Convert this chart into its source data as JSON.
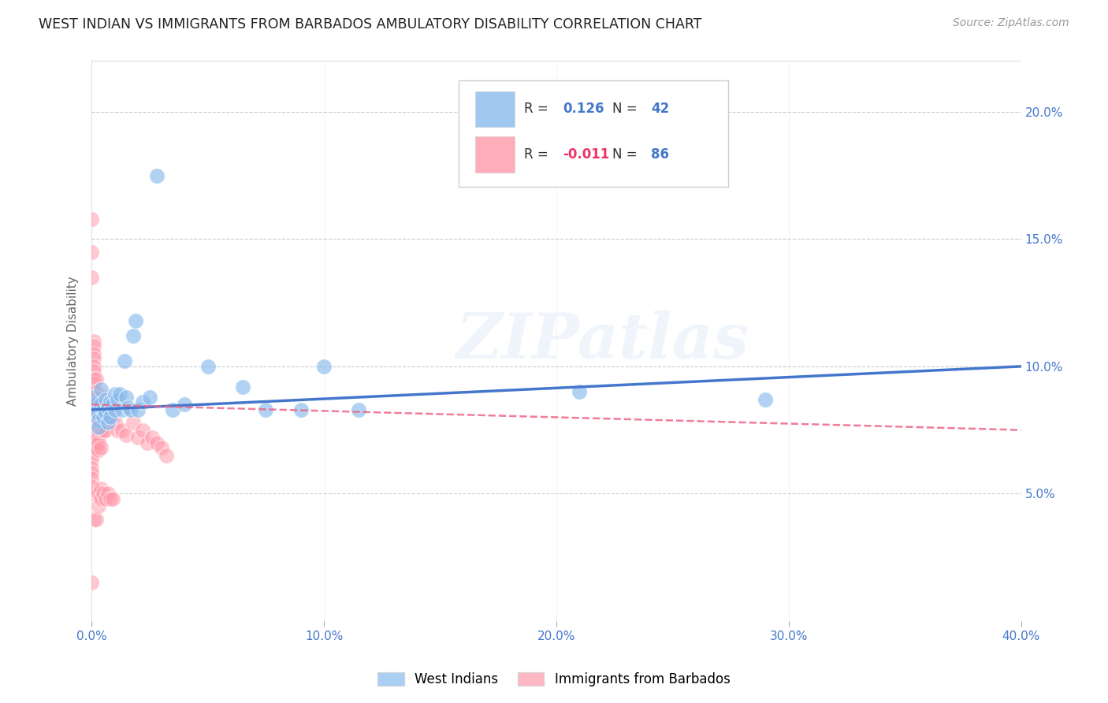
{
  "title": "WEST INDIAN VS IMMIGRANTS FROM BARBADOS AMBULATORY DISABILITY CORRELATION CHART",
  "source": "Source: ZipAtlas.com",
  "ylabel": "Ambulatory Disability",
  "legend1_label": "West Indians",
  "legend2_label": "Immigrants from Barbados",
  "R1": 0.126,
  "N1": 42,
  "R2": -0.011,
  "N2": 86,
  "blue_color": "#88BBEE",
  "pink_color": "#FF99AA",
  "blue_line_color": "#4477CC",
  "pink_line_color": "#EE6688",
  "watermark": "ZIPatlas",
  "blue_scatter_x": [
    0.0,
    0.001,
    0.001,
    0.002,
    0.003,
    0.003,
    0.004,
    0.004,
    0.005,
    0.005,
    0.006,
    0.006,
    0.007,
    0.007,
    0.008,
    0.008,
    0.009,
    0.01,
    0.01,
    0.011,
    0.012,
    0.013,
    0.014,
    0.015,
    0.016,
    0.017,
    0.018,
    0.019,
    0.02,
    0.022,
    0.025,
    0.028,
    0.035,
    0.04,
    0.05,
    0.065,
    0.075,
    0.09,
    0.1,
    0.115,
    0.21,
    0.29
  ],
  "blue_scatter_y": [
    0.083,
    0.085,
    0.088,
    0.082,
    0.079,
    0.076,
    0.091,
    0.085,
    0.083,
    0.08,
    0.087,
    0.082,
    0.084,
    0.078,
    0.086,
    0.08,
    0.085,
    0.089,
    0.083,
    0.087,
    0.089,
    0.083,
    0.102,
    0.088,
    0.084,
    0.083,
    0.112,
    0.118,
    0.083,
    0.086,
    0.088,
    0.175,
    0.083,
    0.085,
    0.1,
    0.092,
    0.083,
    0.083,
    0.1,
    0.083,
    0.09,
    0.087
  ],
  "pink_scatter_x": [
    0.0,
    0.0,
    0.0,
    0.0,
    0.0,
    0.0,
    0.0,
    0.0,
    0.0,
    0.0,
    0.0,
    0.0,
    0.0,
    0.0,
    0.0,
    0.0,
    0.0,
    0.0,
    0.0,
    0.0,
    0.001,
    0.001,
    0.001,
    0.001,
    0.001,
    0.001,
    0.001,
    0.001,
    0.001,
    0.001,
    0.001,
    0.001,
    0.001,
    0.001,
    0.001,
    0.002,
    0.002,
    0.002,
    0.002,
    0.002,
    0.002,
    0.002,
    0.002,
    0.002,
    0.002,
    0.003,
    0.003,
    0.003,
    0.003,
    0.003,
    0.003,
    0.003,
    0.003,
    0.004,
    0.004,
    0.004,
    0.004,
    0.004,
    0.004,
    0.005,
    0.005,
    0.005,
    0.005,
    0.005,
    0.006,
    0.006,
    0.006,
    0.006,
    0.007,
    0.007,
    0.008,
    0.008,
    0.009,
    0.009,
    0.01,
    0.011,
    0.013,
    0.015,
    0.018,
    0.02,
    0.022,
    0.024,
    0.026,
    0.028,
    0.03,
    0.032
  ],
  "pink_scatter_y": [
    0.158,
    0.145,
    0.135,
    0.085,
    0.082,
    0.08,
    0.078,
    0.076,
    0.074,
    0.072,
    0.07,
    0.068,
    0.065,
    0.063,
    0.06,
    0.058,
    0.056,
    0.053,
    0.05,
    0.015,
    0.11,
    0.108,
    0.105,
    0.103,
    0.1,
    0.098,
    0.095,
    0.093,
    0.09,
    0.088,
    0.085,
    0.083,
    0.08,
    0.078,
    0.04,
    0.095,
    0.09,
    0.085,
    0.08,
    0.078,
    0.075,
    0.073,
    0.07,
    0.068,
    0.04,
    0.082,
    0.078,
    0.075,
    0.072,
    0.07,
    0.067,
    0.05,
    0.045,
    0.085,
    0.08,
    0.075,
    0.068,
    0.052,
    0.048,
    0.088,
    0.085,
    0.08,
    0.075,
    0.05,
    0.085,
    0.08,
    0.075,
    0.048,
    0.082,
    0.05,
    0.08,
    0.048,
    0.078,
    0.048,
    0.078,
    0.075,
    0.075,
    0.073,
    0.078,
    0.072,
    0.075,
    0.07,
    0.072,
    0.07,
    0.068,
    0.065
  ],
  "xlim": [
    0.0,
    0.4
  ],
  "ylim": [
    0.0,
    0.22
  ],
  "xtick_vals": [
    0.0,
    0.1,
    0.2,
    0.3,
    0.4
  ],
  "ytick_vals": [
    0.05,
    0.1,
    0.15,
    0.2
  ]
}
